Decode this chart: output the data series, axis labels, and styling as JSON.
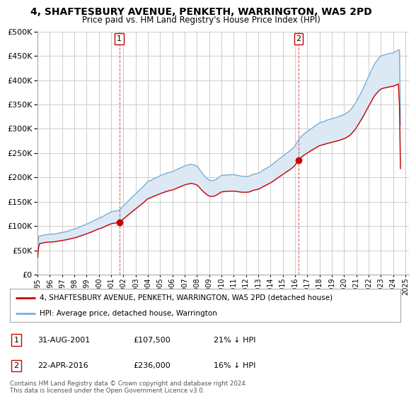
{
  "title": "4, SHAFTESBURY AVENUE, PENKETH, WARRINGTON, WA5 2PD",
  "subtitle": "Price paid vs. HM Land Registry's House Price Index (HPI)",
  "legend_line1": "4, SHAFTESBURY AVENUE, PENKETH, WARRINGTON, WA5 2PD (detached house)",
  "legend_line2": "HPI: Average price, detached house, Warrington",
  "annotation1_date": "31-AUG-2001",
  "annotation1_price": "£107,500",
  "annotation1_hpi": "21% ↓ HPI",
  "annotation2_date": "22-APR-2016",
  "annotation2_price": "£236,000",
  "annotation2_hpi": "16% ↓ HPI",
  "footer": "Contains HM Land Registry data © Crown copyright and database right 2024.\nThis data is licensed under the Open Government Licence v3.0.",
  "ylim": [
    0,
    500000
  ],
  "yticks": [
    0,
    50000,
    100000,
    150000,
    200000,
    250000,
    300000,
    350000,
    400000,
    450000,
    500000
  ],
  "hpi_color": "#7bafd4",
  "hpi_fill_color": "#dce9f5",
  "price_color": "#cc0000",
  "vline_color": "#cc0000",
  "background_color": "#ffffff",
  "grid_color": "#cccccc",
  "sale1_x": 2001.667,
  "sale1_y": 107500,
  "sale2_x": 2016.292,
  "sale2_y": 236000,
  "xmin": 1995.0,
  "xmax": 2025.3,
  "xticks": [
    1995,
    1996,
    1997,
    1998,
    1999,
    2000,
    2001,
    2002,
    2003,
    2004,
    2005,
    2006,
    2007,
    2008,
    2009,
    2010,
    2011,
    2012,
    2013,
    2014,
    2015,
    2016,
    2017,
    2018,
    2019,
    2020,
    2021,
    2022,
    2023,
    2024,
    2025
  ]
}
